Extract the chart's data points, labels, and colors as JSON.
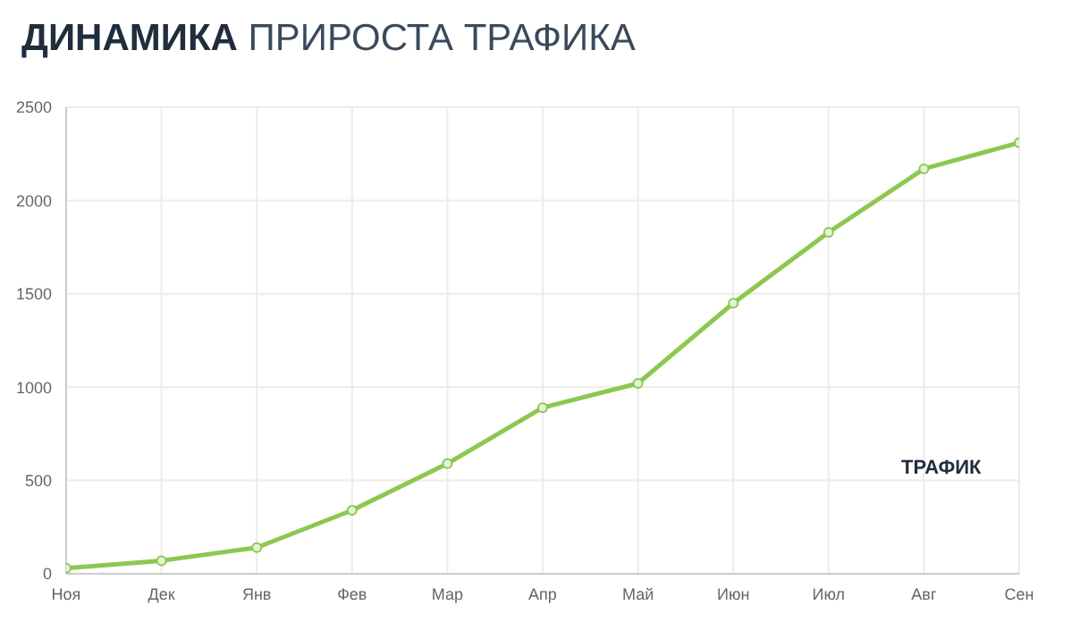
{
  "chart_data": {
    "type": "line",
    "title": "ДИНАМИКА ПРИРОСТА ТРАФИКА",
    "categories": [
      "Ноя",
      "Дек",
      "Янв",
      "Фев",
      "Мар",
      "Апр",
      "Май",
      "Июн",
      "Июл",
      "Авг",
      "Сен"
    ],
    "series": [
      {
        "color": "#8cc850",
        "values": [
          30,
          70,
          140,
          340,
          590,
          890,
          1020,
          1450,
          1830,
          2170,
          2310
        ]
      }
    ],
    "ylim": [
      0,
      2500
    ],
    "yticks": [
      0,
      500,
      1000,
      1500,
      2000,
      2500
    ],
    "grid": true,
    "marker": "circle",
    "line_style": "solid",
    "annotations": [
      "ТРАФИК"
    ]
  }
}
